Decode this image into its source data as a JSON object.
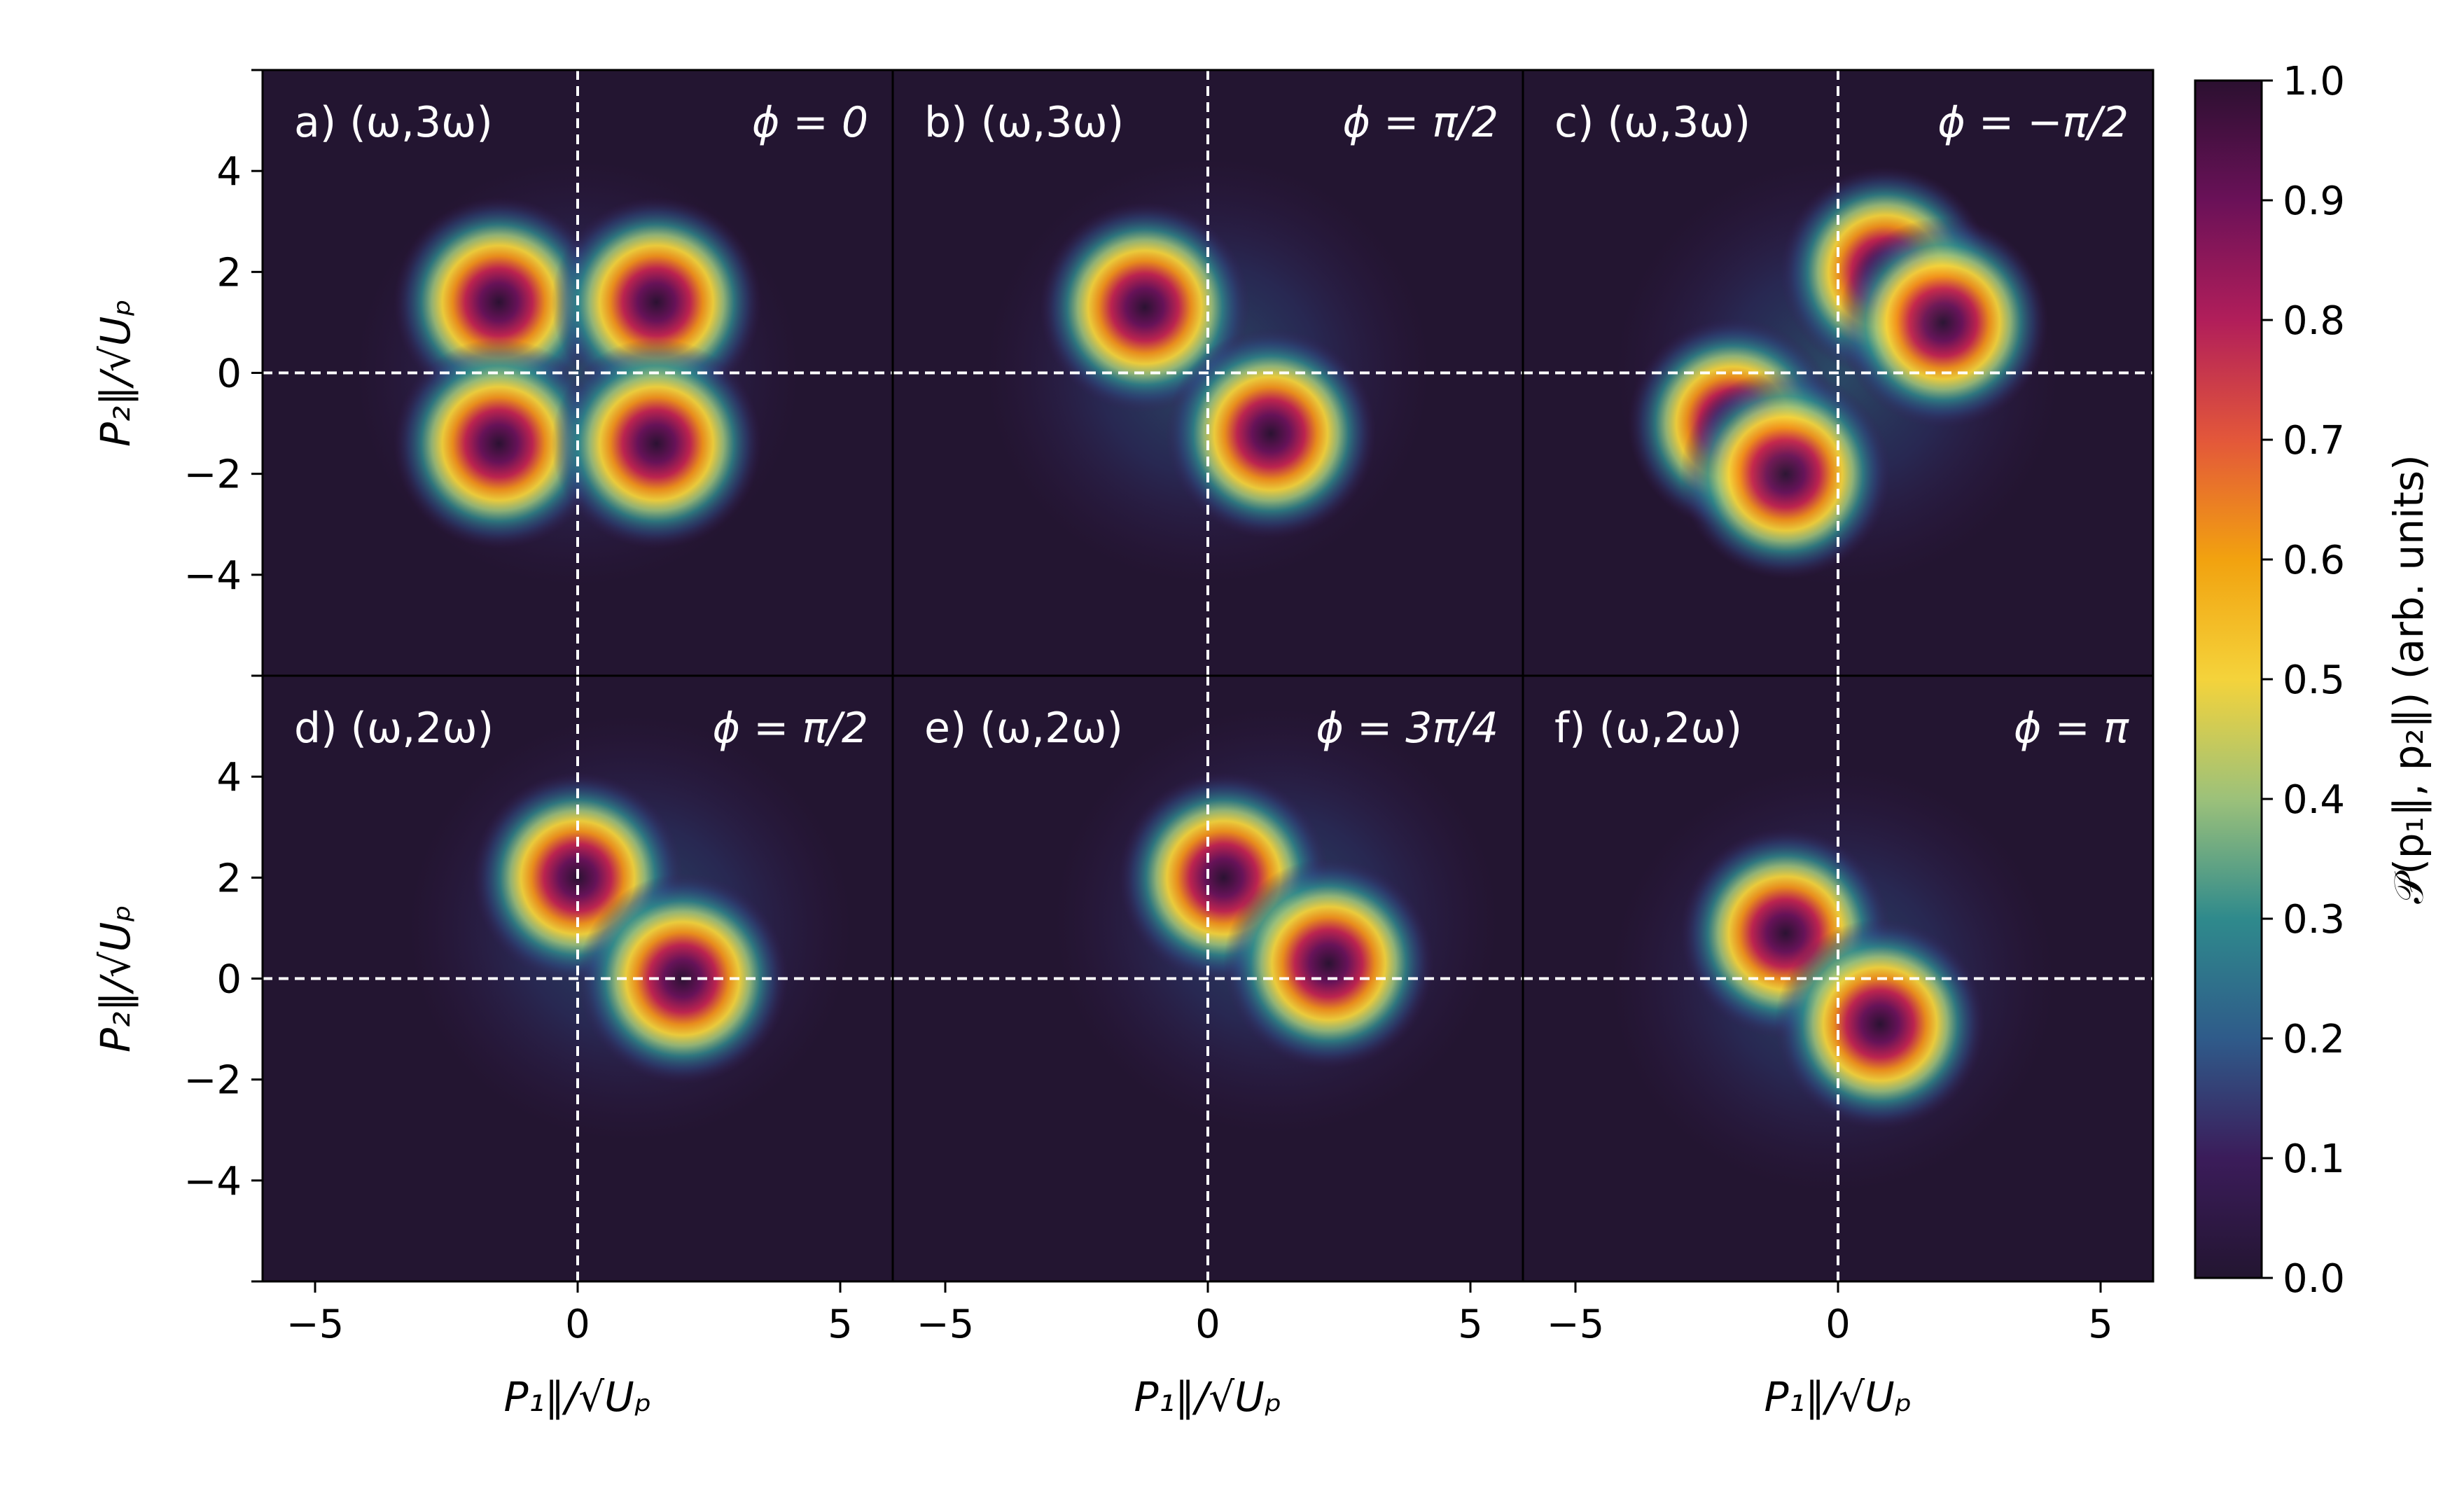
{
  "chart_data": {
    "type": "heatmap",
    "figure_layout": "2x3 grid of panels sharing axes",
    "xlabel": "P₁∥/√Uₚ",
    "ylabel": "P₂∥/√Uₚ",
    "xlim": [
      -6,
      6
    ],
    "ylim": [
      -6,
      6
    ],
    "xticks": [
      -5,
      0,
      5
    ],
    "yticks": [
      -4,
      -2,
      0,
      2,
      4
    ],
    "tick_labels": {
      "x": [
        "−5",
        "0",
        "5"
      ],
      "y": [
        "−4",
        "−2",
        "0",
        "2",
        "4"
      ]
    },
    "reference_lines": {
      "x": 0,
      "y": 0,
      "style": "white dashed"
    },
    "colorbar": {
      "label": "𝒫(p₁∥, p₂∥)  (arb. units)",
      "range": [
        0.0,
        1.0
      ],
      "ticks": [
        "0.0",
        "0.1",
        "0.2",
        "0.3",
        "0.4",
        "0.5",
        "0.6",
        "0.7",
        "0.8",
        "0.9",
        "1.0"
      ],
      "colormap": [
        "#231531",
        "#3b1c5a",
        "#2f5b8a",
        "#2f8a8c",
        "#9cc17a",
        "#f4d33b",
        "#f2a20f",
        "#e3573a",
        "#b11e5a",
        "#6a1158",
        "#2b1030"
      ]
    },
    "panels": [
      {
        "label": "a) (ω,3ω)",
        "phase": "ϕ = 0",
        "peaks": [
          {
            "x": -1.5,
            "y": 1.4,
            "value": 1.0
          },
          {
            "x": 1.5,
            "y": 1.4,
            "value": 1.0
          },
          {
            "x": -1.5,
            "y": -1.4,
            "value": 1.0
          },
          {
            "x": 1.5,
            "y": -1.4,
            "value": 1.0
          }
        ]
      },
      {
        "label": "b) (ω,3ω)",
        "phase": "ϕ = π/2",
        "peaks": [
          {
            "x": -1.2,
            "y": 1.3,
            "value": 1.0
          },
          {
            "x": 1.2,
            "y": -1.2,
            "value": 1.0
          }
        ]
      },
      {
        "label": "c) (ω,3ω)",
        "phase": "ϕ = −π/2",
        "peaks": [
          {
            "x": 0.9,
            "y": 2.0,
            "value": 1.0
          },
          {
            "x": 2.0,
            "y": 1.0,
            "value": 1.0
          },
          {
            "x": -2.0,
            "y": -1.0,
            "value": 1.0
          },
          {
            "x": -1.0,
            "y": -2.0,
            "value": 1.0
          }
        ]
      },
      {
        "label": "d) (ω,2ω)",
        "phase": "ϕ = π/2",
        "peaks": [
          {
            "x": 0.0,
            "y": 2.0,
            "value": 1.0
          },
          {
            "x": 2.0,
            "y": 0.0,
            "value": 1.0
          }
        ]
      },
      {
        "label": "e) (ω,2ω)",
        "phase": "ϕ = 3π/4",
        "peaks": [
          {
            "x": 0.3,
            "y": 2.0,
            "value": 1.0
          },
          {
            "x": 2.3,
            "y": 0.3,
            "value": 1.0
          }
        ]
      },
      {
        "label": "f) (ω,2ω)",
        "phase": "ϕ = π",
        "peaks": [
          {
            "x": -1.0,
            "y": 0.9,
            "value": 1.0
          },
          {
            "x": 0.8,
            "y": -0.9,
            "value": 1.0
          }
        ]
      }
    ]
  }
}
